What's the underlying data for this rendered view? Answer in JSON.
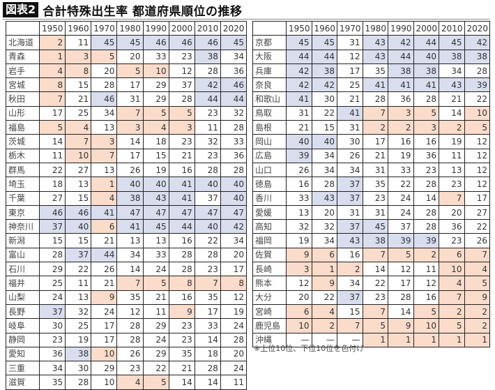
{
  "title": {
    "label": "図表2",
    "text": "合計特殊出生率 都道府県順位の推移"
  },
  "colors": {
    "top10": "#fbdccb",
    "bottom10": "#d9deef"
  },
  "years": [
    "1950",
    "1960",
    "1970",
    "1980",
    "1990",
    "2000",
    "2010",
    "2020"
  ],
  "left_table": [
    {
      "name": "北海道",
      "values": [
        "2",
        "11",
        "45",
        "45",
        "46",
        "46",
        "46",
        "45"
      ],
      "hl": [
        "o",
        "",
        "b",
        "b",
        "b",
        "b",
        "b",
        "b"
      ]
    },
    {
      "name": "青森",
      "values": [
        "1",
        "3",
        "5",
        "20",
        "33",
        "23",
        "38",
        "34"
      ],
      "hl": [
        "o",
        "o",
        "o",
        "",
        "",
        "",
        "b",
        ""
      ]
    },
    {
      "name": "岩手",
      "values": [
        "4",
        "8",
        "20",
        "5",
        "10",
        "12",
        "28",
        "36"
      ],
      "hl": [
        "o",
        "o",
        "",
        "o",
        "o",
        "",
        "",
        ""
      ]
    },
    {
      "name": "宮城",
      "values": [
        "8",
        "15",
        "28",
        "17",
        "29",
        "37",
        "42",
        "46"
      ],
      "hl": [
        "o",
        "",
        "",
        "",
        "",
        "",
        "b",
        "b"
      ]
    },
    {
      "name": "秋田",
      "values": [
        "7",
        "21",
        "46",
        "31",
        "29",
        "28",
        "44",
        "44"
      ],
      "hl": [
        "o",
        "",
        "b",
        "",
        "",
        "",
        "b",
        "b"
      ]
    },
    {
      "name": "山形",
      "values": [
        "17",
        "25",
        "34",
        "7",
        "5",
        "5",
        "23",
        "32"
      ],
      "hl": [
        "",
        "",
        "",
        "o",
        "o",
        "o",
        "",
        ""
      ]
    },
    {
      "name": "福島",
      "values": [
        "5",
        "4",
        "13",
        "3",
        "4",
        "3",
        "11",
        "28"
      ],
      "hl": [
        "o",
        "o",
        "",
        "o",
        "o",
        "o",
        "",
        ""
      ]
    },
    {
      "name": "茨城",
      "values": [
        "14",
        "7",
        "3",
        "14",
        "18",
        "23",
        "32",
        "33"
      ],
      "hl": [
        "",
        "o",
        "o",
        "",
        "",
        "",
        "",
        ""
      ]
    },
    {
      "name": "栃木",
      "values": [
        "11",
        "10",
        "7",
        "17",
        "15",
        "21",
        "23",
        "36"
      ],
      "hl": [
        "",
        "o",
        "o",
        "",
        "",
        "",
        "",
        ""
      ]
    },
    {
      "name": "群馬",
      "values": [
        "22",
        "27",
        "13",
        "26",
        "19",
        "16",
        "28",
        "28"
      ],
      "hl": [
        "",
        "",
        "",
        "",
        "",
        "",
        "",
        ""
      ]
    },
    {
      "name": "埼玉",
      "values": [
        "18",
        "13",
        "1",
        "40",
        "40",
        "41",
        "40",
        "40"
      ],
      "hl": [
        "",
        "",
        "o",
        "b",
        "b",
        "b",
        "b",
        "b"
      ]
    },
    {
      "name": "千葉",
      "values": [
        "27",
        "15",
        "4",
        "38",
        "43",
        "41",
        "37",
        "40"
      ],
      "hl": [
        "",
        "",
        "o",
        "b",
        "b",
        "b",
        "",
        "b"
      ]
    },
    {
      "name": "東京",
      "values": [
        "46",
        "46",
        "41",
        "47",
        "47",
        "47",
        "47",
        "47"
      ],
      "hl": [
        "b",
        "b",
        "b",
        "b",
        "b",
        "b",
        "b",
        "b"
      ]
    },
    {
      "name": "神奈川",
      "values": [
        "37",
        "40",
        "6",
        "41",
        "45",
        "44",
        "40",
        "42"
      ],
      "hl": [
        "b",
        "b",
        "o",
        "b",
        "b",
        "b",
        "b",
        "b"
      ]
    },
    {
      "name": "新潟",
      "values": [
        "15",
        "15",
        "21",
        "13",
        "13",
        "16",
        "22",
        "34"
      ],
      "hl": [
        "",
        "",
        "",
        "",
        "",
        "",
        "",
        ""
      ]
    },
    {
      "name": "富山",
      "values": [
        "28",
        "37",
        "44",
        "34",
        "33",
        "28",
        "28",
        "20"
      ],
      "hl": [
        "",
        "b",
        "b",
        "",
        "",
        "",
        "",
        ""
      ]
    },
    {
      "name": "石川",
      "values": [
        "29",
        "22",
        "26",
        "14",
        "24",
        "28",
        "23",
        "17"
      ],
      "hl": [
        "",
        "",
        "",
        "",
        "",
        "",
        "",
        ""
      ]
    },
    {
      "name": "福井",
      "values": [
        "25",
        "11",
        "21",
        "7",
        "5",
        "8",
        "7",
        "8"
      ],
      "hl": [
        "",
        "",
        "",
        "o",
        "o",
        "o",
        "o",
        "o"
      ]
    },
    {
      "name": "山梨",
      "values": [
        "24",
        "13",
        "9",
        "35",
        "21",
        "16",
        "35",
        "12"
      ],
      "hl": [
        "",
        "",
        "o",
        "",
        "",
        "",
        "",
        ""
      ]
    },
    {
      "name": "長野",
      "values": [
        "37",
        "32",
        "24",
        "12",
        "11",
        "9",
        "17",
        "19"
      ],
      "hl": [
        "b",
        "",
        "",
        "",
        "",
        "o",
        "",
        ""
      ]
    },
    {
      "name": "岐阜",
      "values": [
        "30",
        "25",
        "17",
        "28",
        "29",
        "23",
        "33",
        "24"
      ],
      "hl": [
        "",
        "",
        "",
        "",
        "",
        "",
        "",
        ""
      ]
    },
    {
      "name": "静岡",
      "values": [
        "23",
        "19",
        "17",
        "28",
        "24",
        "23",
        "14",
        "28"
      ],
      "hl": [
        "",
        "",
        "",
        "",
        "",
        "",
        "",
        ""
      ]
    },
    {
      "name": "愛知",
      "values": [
        "36",
        "38",
        "10",
        "26",
        "29",
        "35",
        "18",
        "20"
      ],
      "hl": [
        "",
        "b",
        "o",
        "",
        "",
        "",
        "",
        ""
      ]
    },
    {
      "name": "三重",
      "values": [
        "34",
        "30",
        "29",
        "23",
        "22",
        "21",
        "28",
        "24"
      ],
      "hl": [
        "",
        "",
        "",
        "",
        "",
        "",
        "",
        ""
      ]
    },
    {
      "name": "滋賀",
      "values": [
        "35",
        "28",
        "10",
        "4",
        "5",
        "14",
        "14",
        "11"
      ],
      "hl": [
        "",
        "",
        "",
        "o",
        "o",
        "",
        "",
        ""
      ]
    }
  ],
  "right_table": [
    {
      "name": "京都",
      "values": [
        "45",
        "45",
        "31",
        "43",
        "42",
        "44",
        "45",
        "42"
      ],
      "hl": [
        "b",
        "b",
        "",
        "b",
        "b",
        "b",
        "b",
        "b"
      ]
    },
    {
      "name": "大阪",
      "values": [
        "44",
        "44",
        "12",
        "43",
        "44",
        "40",
        "38",
        "38"
      ],
      "hl": [
        "b",
        "b",
        "",
        "b",
        "b",
        "b",
        "b",
        "b"
      ]
    },
    {
      "name": "兵庫",
      "values": [
        "42",
        "38",
        "17",
        "35",
        "38",
        "38",
        "34",
        "28"
      ],
      "hl": [
        "b",
        "b",
        "",
        "",
        "b",
        "b",
        "",
        ""
      ]
    },
    {
      "name": "奈良",
      "values": [
        "42",
        "42",
        "25",
        "41",
        "41",
        "41",
        "43",
        "39"
      ],
      "hl": [
        "b",
        "b",
        "",
        "b",
        "b",
        "b",
        "b",
        "b"
      ]
    },
    {
      "name": "和歌山",
      "values": [
        "41",
        "30",
        "21",
        "28",
        "36",
        "28",
        "21",
        "22"
      ],
      "hl": [
        "b",
        "",
        "",
        "",
        "",
        "",
        "",
        ""
      ]
    },
    {
      "name": "鳥取",
      "values": [
        "31",
        "22",
        "41",
        "7",
        "3",
        "5",
        "14",
        "10"
      ],
      "hl": [
        "",
        "",
        "b",
        "o",
        "o",
        "o",
        "",
        "o"
      ]
    },
    {
      "name": "島根",
      "values": [
        "21",
        "15",
        "31",
        "2",
        "2",
        "3",
        "2",
        "5"
      ],
      "hl": [
        "",
        "",
        "",
        "o",
        "o",
        "o",
        "o",
        "o"
      ]
    },
    {
      "name": "岡山",
      "values": [
        "40",
        "40",
        "30",
        "17",
        "16",
        "16",
        "19",
        "12"
      ],
      "hl": [
        "b",
        "b",
        "",
        "",
        "",
        "",
        "",
        ""
      ]
    },
    {
      "name": "広島",
      "values": [
        "39",
        "34",
        "26",
        "21",
        "19",
        "36",
        "11",
        "12"
      ],
      "hl": [
        "b",
        "",
        "",
        "",
        "",
        "",
        "",
        ""
      ]
    },
    {
      "name": "山口",
      "values": [
        "26",
        "34",
        "34",
        "31",
        "33",
        "23",
        "13",
        "12"
      ],
      "hl": [
        "",
        "",
        "",
        "",
        "",
        "",
        "",
        ""
      ]
    },
    {
      "name": "徳島",
      "values": [
        "16",
        "28",
        "37",
        "35",
        "22",
        "28",
        "23",
        "12"
      ],
      "hl": [
        "",
        "",
        "b",
        "",
        "",
        "",
        "",
        ""
      ]
    },
    {
      "name": "香川",
      "values": [
        "33",
        "43",
        "37",
        "23",
        "24",
        "14",
        "7",
        "17"
      ],
      "hl": [
        "",
        "b",
        "b",
        "",
        "",
        "",
        "o",
        ""
      ]
    },
    {
      "name": "愛媛",
      "values": [
        "13",
        "20",
        "31",
        "31",
        "24",
        "28",
        "20",
        "27"
      ],
      "hl": [
        "",
        "",
        "",
        "",
        "",
        "",
        "",
        ""
      ]
    },
    {
      "name": "高知",
      "values": [
        "32",
        "32",
        "37",
        "45",
        "37",
        "28",
        "36",
        "22"
      ],
      "hl": [
        "",
        "",
        "b",
        "b",
        "",
        "",
        "",
        ""
      ]
    },
    {
      "name": "福岡",
      "values": [
        "19",
        "34",
        "43",
        "38",
        "39",
        "39",
        "23",
        "26"
      ],
      "hl": [
        "",
        "",
        "b",
        "b",
        "b",
        "b",
        "",
        ""
      ]
    },
    {
      "name": "佐賀",
      "values": [
        "9",
        "6",
        "16",
        "7",
        "5",
        "2",
        "6",
        "7"
      ],
      "hl": [
        "o",
        "o",
        "",
        "o",
        "o",
        "o",
        "o",
        "o"
      ]
    },
    {
      "name": "長崎",
      "values": [
        "3",
        "1",
        "2",
        "14",
        "12",
        "11",
        "10",
        "4"
      ],
      "hl": [
        "o",
        "o",
        "o",
        "",
        "",
        "",
        "o",
        "o"
      ]
    },
    {
      "name": "熊本",
      "values": [
        "12",
        "9",
        "34",
        "22",
        "17",
        "12",
        "4",
        "5"
      ],
      "hl": [
        "",
        "o",
        "",
        "",
        "",
        "",
        "o",
        "o"
      ]
    },
    {
      "name": "大分",
      "values": [
        "20",
        "22",
        "37",
        "23",
        "28",
        "16",
        "7",
        "9"
      ],
      "hl": [
        "",
        "",
        "b",
        "",
        "",
        "",
        "o",
        "o"
      ]
    },
    {
      "name": "宮崎",
      "values": [
        "6",
        "4",
        "15",
        "7",
        "14",
        "5",
        "2",
        "2"
      ],
      "hl": [
        "o",
        "o",
        "",
        "o",
        "",
        "o",
        "o",
        "o"
      ]
    },
    {
      "name": "鹿児島",
      "values": [
        "10",
        "2",
        "7",
        "5",
        "9",
        "10",
        "5",
        "2"
      ],
      "hl": [
        "o",
        "o",
        "o",
        "o",
        "o",
        "o",
        "o",
        "o"
      ]
    },
    {
      "name": "沖縄",
      "values": [
        "—",
        "—",
        "—",
        "1",
        "1",
        "1",
        "1",
        "1"
      ],
      "hl": [
        "",
        "",
        "",
        "o",
        "o",
        "o",
        "o",
        "o"
      ]
    }
  ],
  "note": "※上位10位、下位10位を色付け"
}
